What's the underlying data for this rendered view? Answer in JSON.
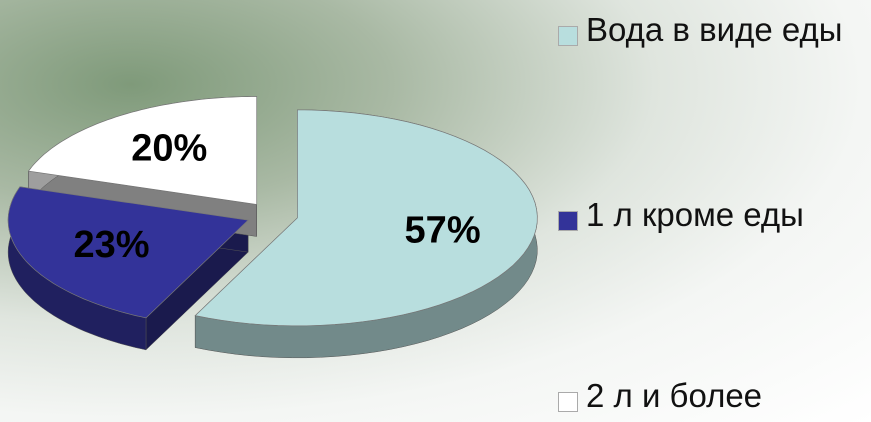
{
  "chart_data": {
    "type": "pie3d",
    "categories": [
      "Вода в виде еды",
      "1 л кроме еды",
      "2 л и более"
    ],
    "values": [
      57,
      23,
      20
    ],
    "value_labels": [
      "57%",
      "23%",
      "20%"
    ],
    "colors": [
      "#b8dede",
      "#333399",
      "#ffffff"
    ],
    "legend": "right"
  }
}
